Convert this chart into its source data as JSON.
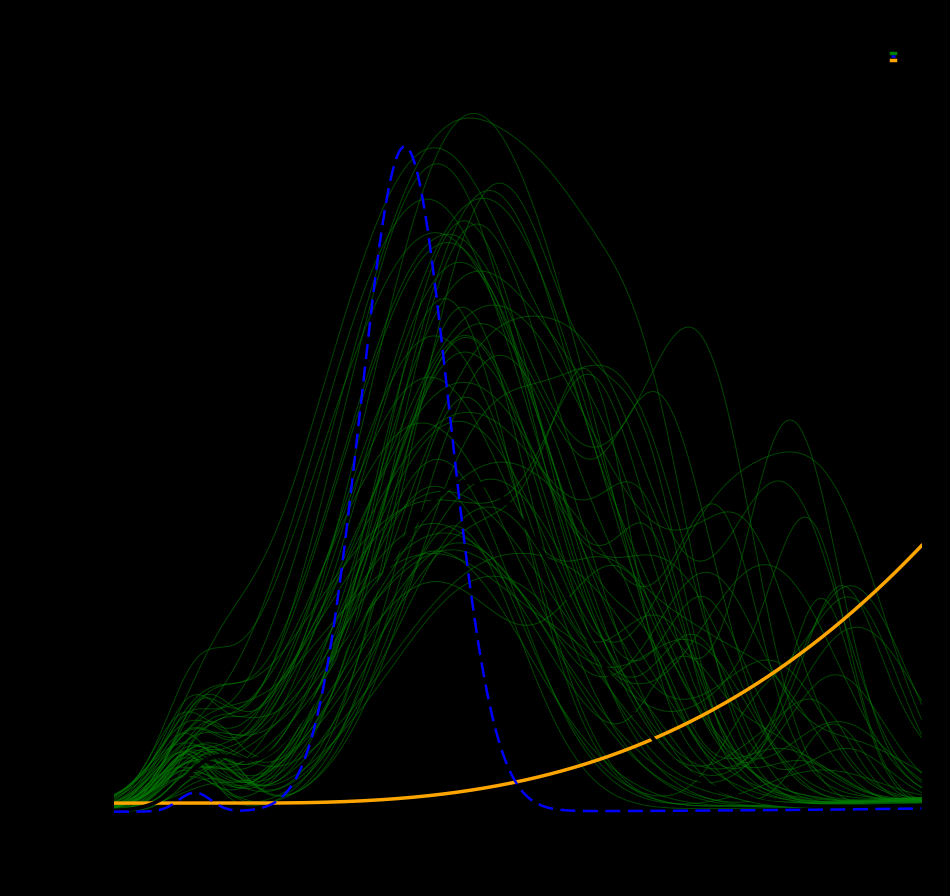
{
  "background_color": "#000000",
  "green_color": "#008000",
  "blue_color": "#0000FF",
  "orange_color": "#FFA500",
  "black_curve_color": "#000000",
  "figsize": [
    9.5,
    8.96
  ],
  "dpi": 100,
  "n_green_curves": 50,
  "seed": 42
}
